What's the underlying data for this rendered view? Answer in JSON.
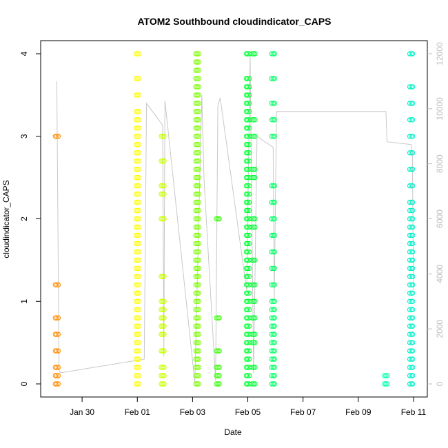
{
  "chart_data": {
    "type": "scatter",
    "title": "ATOM2 Southbound cloudindicator_CAPS",
    "xlabel": "Date",
    "ylabel": "cloudindicator_CAPS",
    "x_ticks": [
      "Jan 30",
      "Feb 01",
      "Feb 03",
      "Feb 05",
      "Feb 07",
      "Feb 09",
      "Feb 11"
    ],
    "y_ticks": [
      "0",
      "1",
      "2",
      "3",
      "4"
    ],
    "y2_ticks": [
      "0",
      "2000",
      "4000",
      "6000",
      "8000",
      "10000",
      "12000"
    ],
    "xlim": [
      "2019-01-28T12:00",
      "2019-02-11T12:00"
    ],
    "ylim": [
      0,
      4
    ],
    "y2lim": [
      0,
      12000
    ],
    "grid": false,
    "colors": {
      "orange": "#ff8c00",
      "yellow": "#ffff00",
      "yellowgreen": "#c8ff00",
      "lightgreen": "#7cff00",
      "green": "#33ff00",
      "bright_green": "#00ff33",
      "seagreen": "#00ff66",
      "aqua": "#00ffb0",
      "cyan": "#00f0c8",
      "secondary_line": "#c8c8c8"
    },
    "scatter_series": [
      {
        "color": "orange",
        "x": [
          "2019-01-29T02:00"
        ],
        "y": [
          0,
          0.1,
          0.2,
          0.4,
          0.6,
          0.8,
          1.2,
          3
        ]
      },
      {
        "color": "yellow",
        "x": [
          "2019-02-01T00:00"
        ],
        "y": [
          0,
          0.1,
          0.2,
          0.3,
          0.4,
          0.5,
          0.6,
          0.7,
          0.8,
          0.9,
          1,
          1.1,
          1.2,
          1.3,
          1.4,
          1.5,
          1.6,
          1.7,
          1.8,
          1.9,
          2,
          2.1,
          2.2,
          2.3,
          2.4,
          2.5,
          2.6,
          2.7,
          2.8,
          2.9,
          3,
          3.1,
          3.2,
          3.3,
          3.5,
          3.7,
          4
        ]
      },
      {
        "color": "yellowgreen",
        "x": [
          "2019-02-01T22:00"
        ],
        "y": [
          0,
          0.1,
          0.2,
          0.4,
          0.6,
          0.7,
          0.8,
          0.9,
          1,
          1.3,
          2,
          2.3,
          2.4,
          2.7,
          3
        ]
      },
      {
        "color": "lightgreen",
        "x": [
          "2019-02-03T04:00"
        ],
        "y": [
          0,
          0.1,
          0.2,
          0.3,
          0.4,
          0.5,
          0.6,
          0.7,
          0.8,
          0.9,
          1,
          1.1,
          1.2,
          1.3,
          1.4,
          1.5,
          1.6,
          1.7,
          1.8,
          1.9,
          2,
          2.1,
          2.2,
          2.3,
          2.4,
          2.5,
          2.6,
          2.7,
          2.8,
          2.9,
          3,
          3.1,
          3.2,
          3.3,
          3.4,
          3.5,
          3.6,
          3.7,
          3.8,
          3.9,
          4
        ]
      },
      {
        "color": "green",
        "x": [
          "2019-02-03T22:00"
        ],
        "y": [
          0,
          0.1,
          0.2,
          0.4,
          0.8,
          2
        ]
      },
      {
        "color": "bright_green",
        "x": [
          "2019-02-05T00:00"
        ],
        "y": [
          0,
          0.1,
          0.2,
          0.3,
          0.4,
          0.5,
          0.6,
          0.7,
          0.8,
          0.9,
          1,
          1.1,
          1.2,
          1.3,
          1.4,
          1.5,
          1.6,
          1.7,
          1.8,
          1.9,
          2,
          2.1,
          2.2,
          2.3,
          2.4,
          2.5,
          2.6,
          2.7,
          2.8,
          2.9,
          3,
          3.1,
          3.2,
          3.3,
          3.4,
          3.5,
          3.6,
          3.7,
          4
        ]
      },
      {
        "color": "bright_green",
        "x": [
          "2019-02-05T05:00"
        ],
        "y": [
          0,
          0.2,
          0.5,
          0.6,
          0.8,
          1,
          1.2,
          1.5,
          1.9,
          2,
          2.5,
          2.6,
          3,
          3.2,
          4
        ]
      },
      {
        "color": "seagreen",
        "x": [
          "2019-02-05T22:00"
        ],
        "y": [
          0,
          0.1,
          0.2,
          0.3,
          0.4,
          0.5,
          0.6,
          0.7,
          0.8,
          0.9,
          1,
          1.2,
          1.4,
          1.6,
          1.8,
          2,
          2.2,
          2.4,
          3,
          3.2,
          3.4,
          3.7,
          4
        ]
      },
      {
        "color": "aqua",
        "x": [
          "2019-02-10T00:00"
        ],
        "y": [
          0,
          0.1
        ]
      },
      {
        "color": "cyan",
        "x": [
          "2019-02-10T22:00"
        ],
        "y": [
          0,
          0.1,
          0.2,
          0.3,
          0.4,
          0.5,
          0.6,
          0.7,
          0.8,
          0.9,
          1,
          1.1,
          1.2,
          1.3,
          1.4,
          1.5,
          1.6,
          1.7,
          1.8,
          1.9,
          2,
          2.1,
          2.2,
          2.4,
          2.6,
          2.8,
          3,
          3.2,
          3.4,
          3.6,
          4
        ]
      }
    ],
    "secondary_line": {
      "axis": "right",
      "x": [
        "2019-01-29T02:00",
        "2019-01-29T04:00",
        "2019-01-29T05:00",
        "2019-02-01T06:00",
        "2019-02-01T08:00",
        "2019-02-01T22:00",
        "2019-02-01T23:00",
        "2019-02-02T00:00",
        "2019-02-03T02:00",
        "2019-02-03T08:00",
        "2019-02-03T10:00",
        "2019-02-03T20:00",
        "2019-02-03T22:00",
        "2019-02-04T00:00",
        "2019-02-04T23:00",
        "2019-02-05T02:00",
        "2019-02-05T05:00",
        "2019-02-05T08:00",
        "2019-02-05T22:00",
        "2019-02-05T23:00",
        "2019-02-06T01:00",
        "2019-02-10T00:00",
        "2019-02-10T01:00",
        "2019-02-10T22:00",
        "2019-02-10T23:00",
        "2019-02-11T00:00"
      ],
      "y": [
        11000,
        500,
        400,
        900,
        10200,
        9400,
        1000,
        10300,
        50,
        10500,
        7400,
        120,
        10100,
        10400,
        3400,
        11900,
        400,
        9000,
        8600,
        3100,
        9900,
        9900,
        8800,
        8700,
        8400,
        3400
      ]
    }
  }
}
